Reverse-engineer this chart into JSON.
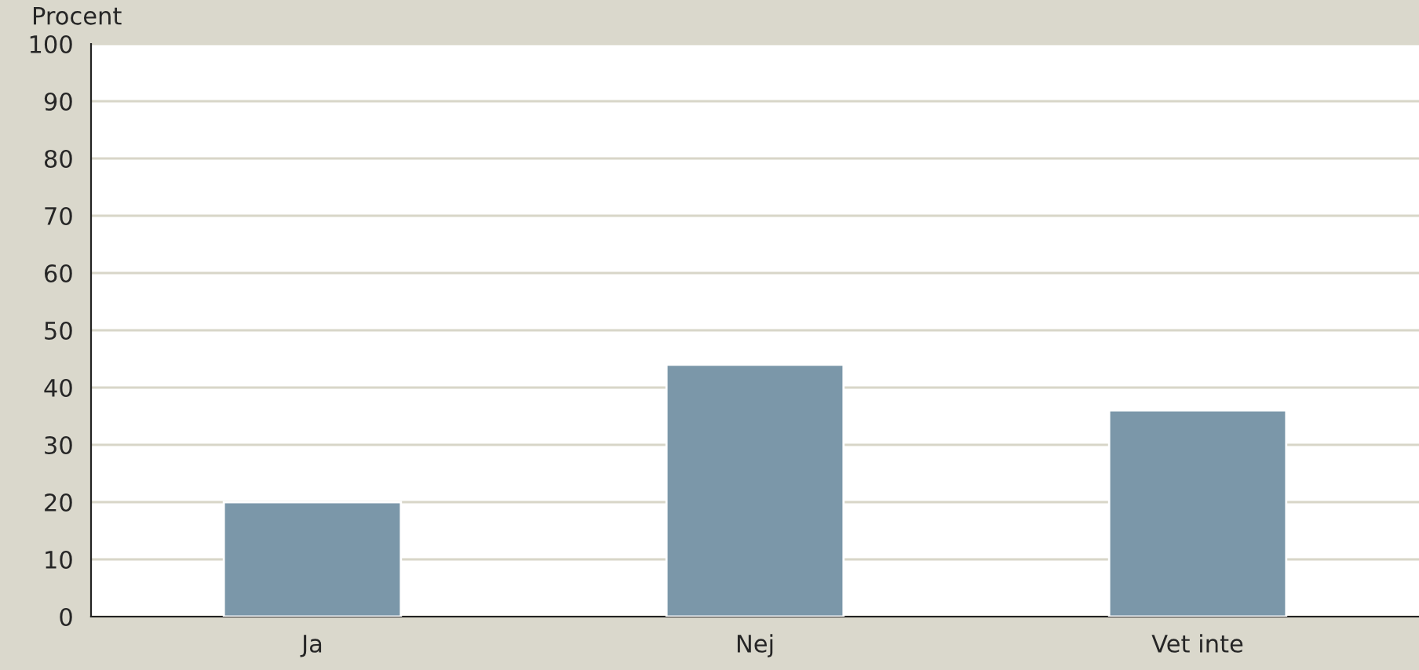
{
  "chart_data": {
    "type": "bar",
    "ylabel": "Procent",
    "categories": [
      "Ja",
      "Nej",
      "Vet inte"
    ],
    "values": [
      20,
      44,
      36
    ],
    "color": "#7b97a9",
    "ylim": [
      0,
      100
    ],
    "yticks": [
      0,
      10,
      20,
      30,
      40,
      50,
      60,
      70,
      80,
      90,
      100
    ],
    "grid": "y"
  }
}
